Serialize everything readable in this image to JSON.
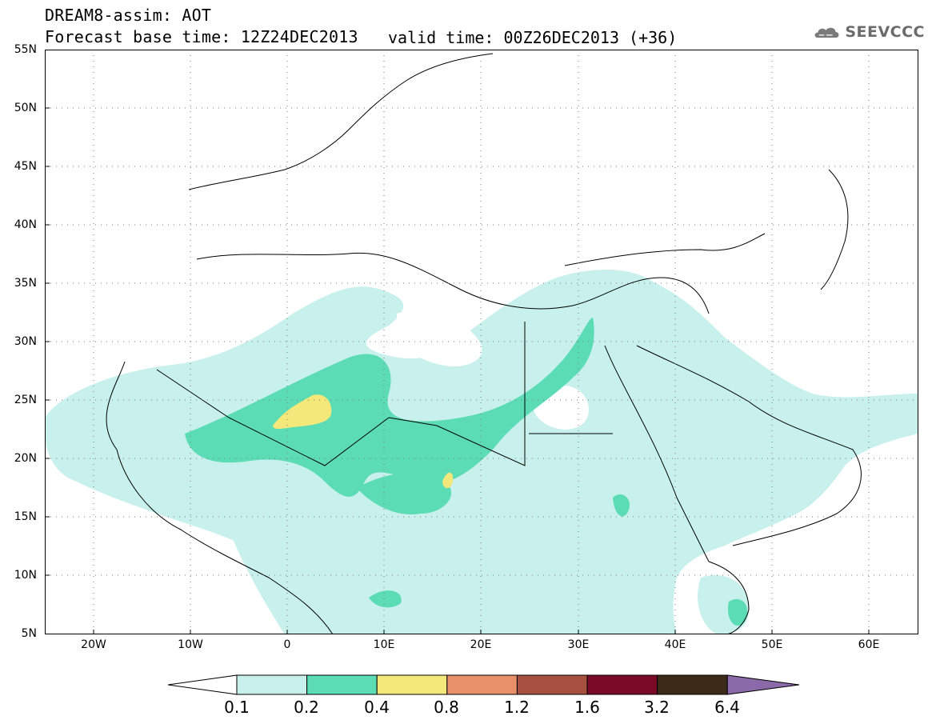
{
  "header": {
    "title": "DREAM8-assim: AOT",
    "base_time": "Forecast base time: 12Z24DEC2013",
    "valid_time": "valid time: 00Z26DEC2013 (+36)"
  },
  "logo": {
    "text": "SEEVCCC",
    "icon": "cloud-logo-icon"
  },
  "map": {
    "lat_labels": [
      "55N",
      "50N",
      "45N",
      "40N",
      "35N",
      "30N",
      "25N",
      "20N",
      "15N",
      "10N",
      "5N"
    ],
    "lon_labels": [
      "20W",
      "10W",
      "0",
      "10E",
      "20E",
      "30E",
      "40E",
      "50E",
      "60E"
    ],
    "extent": {
      "lon_min": -25,
      "lon_max": 65,
      "lat_min": 5,
      "lat_max": 55
    }
  },
  "colorbar": {
    "labels": [
      "0.1",
      "0.2",
      "0.4",
      "0.8",
      "1.2",
      "1.6",
      "3.2",
      "6.4"
    ],
    "colors": [
      "#ffffff",
      "#c8f0ec",
      "#5cdcb4",
      "#f5e87a",
      "#e8906a",
      "#a85040",
      "#7a0a28",
      "#3e2a18",
      "#8a6aa8"
    ]
  }
}
